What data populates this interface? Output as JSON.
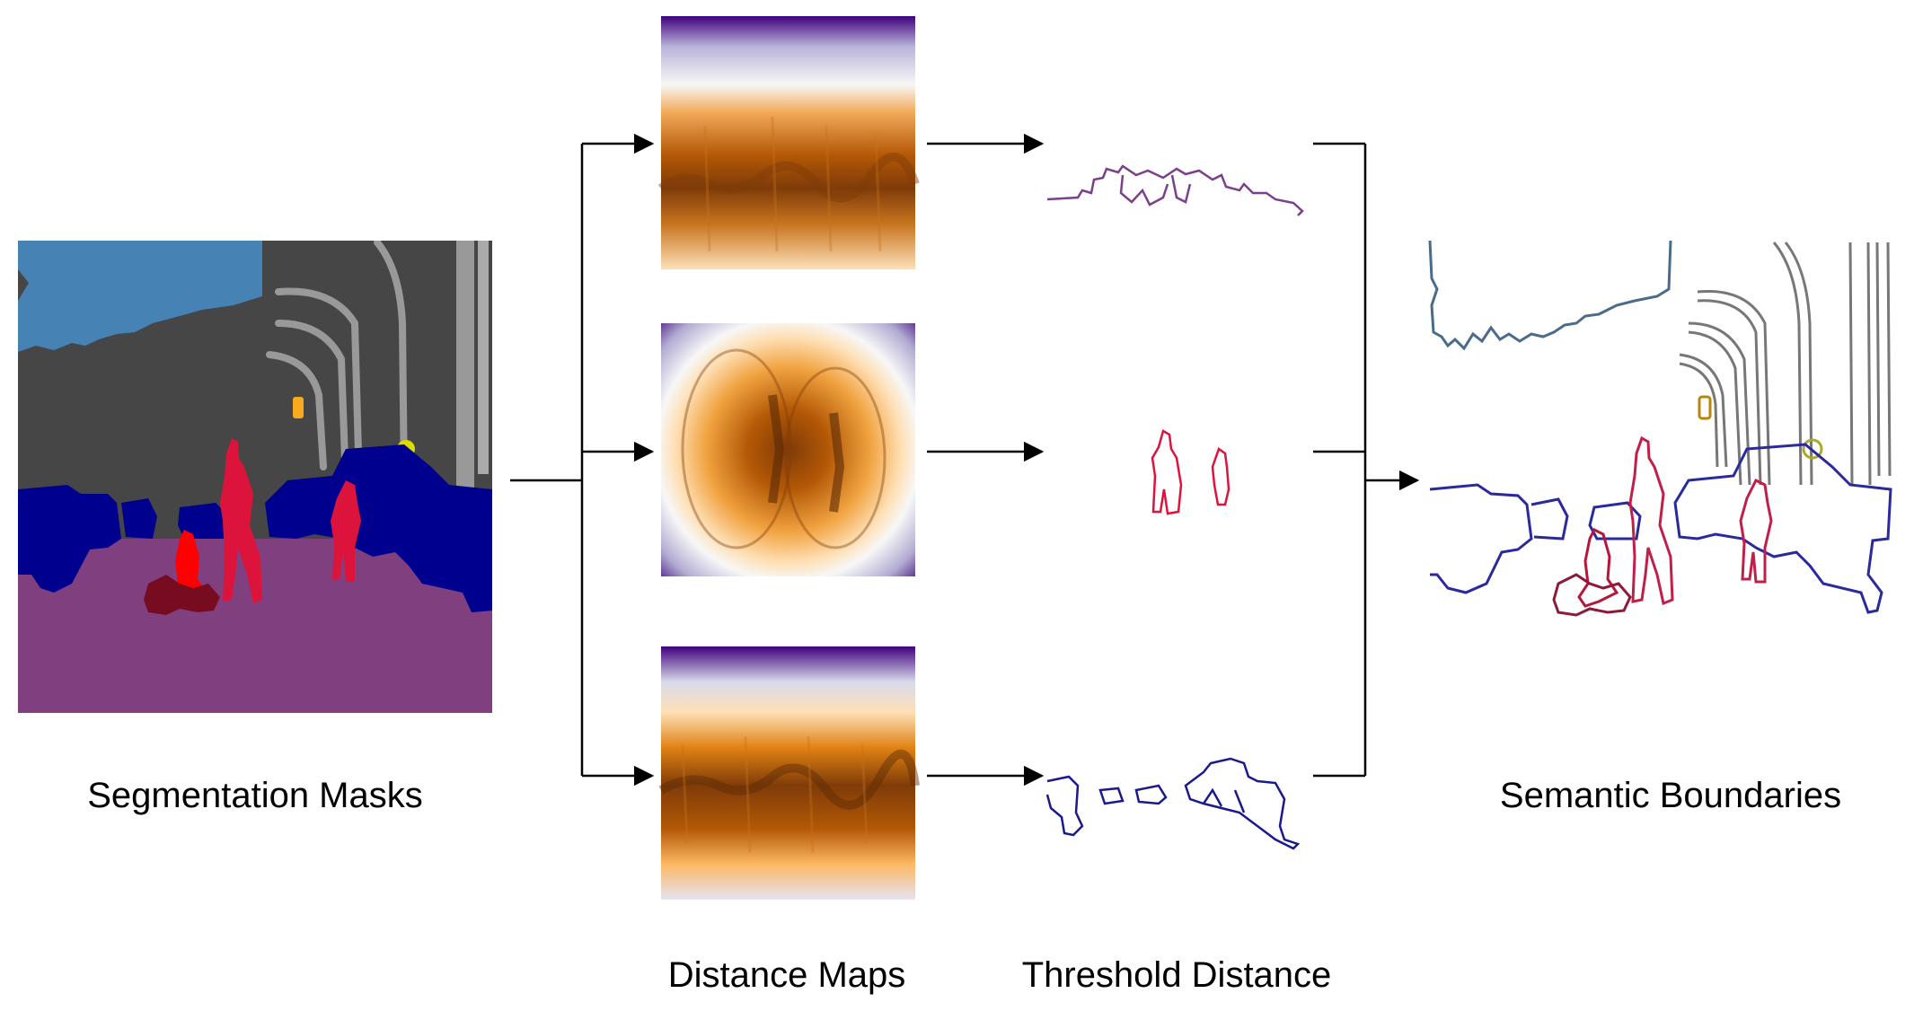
{
  "labels": {
    "segmentation": "Segmentation Masks",
    "distance": "Distance Maps",
    "threshold": "Threshold Distance",
    "semantic": "Semantic Boundaries"
  },
  "colors": {
    "sky": "#4682b4",
    "building": "#464646",
    "pole": "#999999",
    "road": "#804080",
    "vehicle": "#00008e",
    "person": "#dc143c",
    "rider": "#ff0000",
    "motorcycle": "#770b20",
    "traffic_light": "#faaa1e",
    "traffic_sign": "#dcdc00",
    "dist_far": "#3f007d",
    "dist_mid": "#f7f7f7",
    "dist_near": "#7f3b08",
    "arrow": "#000000"
  },
  "rows": [
    "sky",
    "person",
    "vehicle"
  ]
}
